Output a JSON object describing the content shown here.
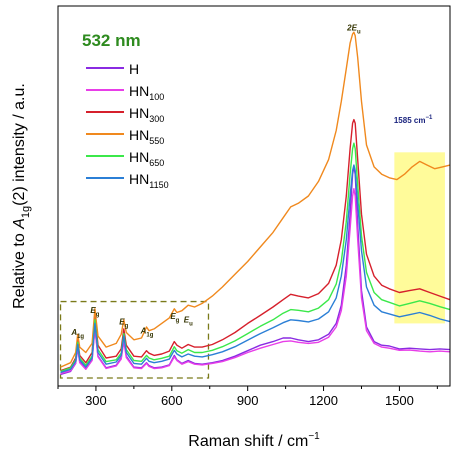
{
  "chart_data": {
    "type": "line",
    "xlabel": {
      "main": "Raman shift / cm",
      "sup": "−1"
    },
    "ylabel": {
      "pre": "Relative to ",
      "var": "A",
      "sub": "1g",
      "post": "(2) intensity / a.u."
    },
    "xlim": [
      150,
      1700
    ],
    "xticks": [
      300,
      600,
      900,
      1200,
      1500
    ],
    "ylim": [
      0,
      1
    ],
    "grid": false,
    "laser": {
      "text": "532 nm",
      "color": "#2e8b1f"
    },
    "legend_position": "top-left",
    "highlight": {
      "x0": 1480,
      "x1": 1680,
      "label": "1585 cm",
      "label_sup": "−1",
      "color": "#fffb9a",
      "label_color": "#1a237e"
    },
    "zoom_box": {
      "x0": 160,
      "x1": 745,
      "y0": 0.0,
      "y1": 0.21,
      "color": "#7a7a1a"
    },
    "peak_labels": [
      {
        "sym": "2E",
        "sub": "u",
        "x": 1320,
        "y": 0.955
      },
      {
        "sym": "A",
        "sub": "1g",
        "x": 228,
        "y": 0.118
      },
      {
        "sym": "E",
        "sub": "g",
        "x": 296,
        "y": 0.178
      },
      {
        "sym": "E",
        "sub": "g",
        "x": 410,
        "y": 0.147
      },
      {
        "sym": "A",
        "sub": "1g",
        "x": 502,
        "y": 0.122
      },
      {
        "sym": "E",
        "sub": "g",
        "x": 612,
        "y": 0.162
      },
      {
        "sym": "E",
        "sub": "u",
        "x": 665,
        "y": 0.152
      }
    ],
    "series": [
      {
        "name": "H",
        "sub": "",
        "color": "#8a2be2",
        "x": [
          160,
          200,
          220,
          228,
          236,
          260,
          285,
          296,
          308,
          340,
          380,
          400,
          410,
          420,
          450,
          480,
          500,
          510,
          530,
          560,
          590,
          610,
          620,
          640,
          665,
          690,
          720,
          760,
          800,
          850,
          900,
          950,
          1000,
          1040,
          1070,
          1100,
          1140,
          1180,
          1220,
          1250,
          1270,
          1290,
          1305,
          1315,
          1320,
          1325,
          1335,
          1350,
          1370,
          1400,
          1430,
          1460,
          1500,
          1540,
          1580,
          1620,
          1660,
          1700
        ],
        "y": [
          0.01,
          0.018,
          0.04,
          0.09,
          0.045,
          0.025,
          0.05,
          0.14,
          0.06,
          0.028,
          0.035,
          0.055,
          0.108,
          0.06,
          0.03,
          0.028,
          0.042,
          0.034,
          0.028,
          0.03,
          0.036,
          0.062,
          0.05,
          0.04,
          0.048,
          0.04,
          0.038,
          0.042,
          0.048,
          0.06,
          0.075,
          0.09,
          0.1,
          0.11,
          0.11,
          0.105,
          0.1,
          0.105,
          0.12,
          0.15,
          0.2,
          0.31,
          0.45,
          0.56,
          0.58,
          0.56,
          0.42,
          0.24,
          0.14,
          0.1,
          0.09,
          0.088,
          0.08,
          0.082,
          0.08,
          0.078,
          0.08,
          0.078
        ]
      },
      {
        "name": "HN",
        "sub": "100",
        "color": "#e83ee8",
        "x": [
          160,
          200,
          220,
          228,
          236,
          260,
          285,
          296,
          308,
          340,
          380,
          400,
          410,
          420,
          450,
          480,
          500,
          510,
          530,
          560,
          590,
          610,
          620,
          640,
          665,
          690,
          720,
          760,
          800,
          850,
          900,
          950,
          1000,
          1040,
          1070,
          1100,
          1140,
          1180,
          1220,
          1250,
          1270,
          1290,
          1305,
          1315,
          1320,
          1325,
          1335,
          1350,
          1370,
          1400,
          1430,
          1460,
          1500,
          1540,
          1580,
          1620,
          1660,
          1700
        ],
        "y": [
          0.012,
          0.02,
          0.042,
          0.08,
          0.042,
          0.024,
          0.048,
          0.135,
          0.058,
          0.026,
          0.033,
          0.052,
          0.1,
          0.056,
          0.028,
          0.026,
          0.04,
          0.032,
          0.026,
          0.028,
          0.034,
          0.058,
          0.048,
          0.038,
          0.045,
          0.038,
          0.036,
          0.04,
          0.045,
          0.056,
          0.07,
          0.082,
          0.092,
          0.1,
          0.102,
          0.098,
          0.095,
          0.098,
          0.112,
          0.14,
          0.185,
          0.28,
          0.41,
          0.5,
          0.52,
          0.5,
          0.38,
          0.22,
          0.13,
          0.095,
          0.085,
          0.082,
          0.076,
          0.077,
          0.074,
          0.072,
          0.074,
          0.072
        ]
      },
      {
        "name": "HN",
        "sub": "300",
        "color": "#d6202c",
        "x": [
          160,
          200,
          220,
          228,
          236,
          260,
          285,
          296,
          308,
          340,
          380,
          400,
          410,
          420,
          450,
          480,
          500,
          510,
          530,
          560,
          590,
          610,
          620,
          640,
          665,
          690,
          720,
          760,
          800,
          850,
          900,
          950,
          1000,
          1040,
          1070,
          1100,
          1140,
          1180,
          1220,
          1250,
          1270,
          1290,
          1305,
          1315,
          1320,
          1325,
          1335,
          1350,
          1370,
          1400,
          1430,
          1460,
          1500,
          1540,
          1580,
          1620,
          1660,
          1700
        ],
        "y": [
          0.02,
          0.03,
          0.055,
          0.105,
          0.062,
          0.042,
          0.07,
          0.175,
          0.09,
          0.055,
          0.06,
          0.08,
          0.135,
          0.09,
          0.06,
          0.058,
          0.075,
          0.068,
          0.062,
          0.066,
          0.074,
          0.1,
          0.09,
          0.082,
          0.092,
          0.085,
          0.085,
          0.092,
          0.105,
          0.125,
          0.15,
          0.172,
          0.195,
          0.215,
          0.23,
          0.225,
          0.22,
          0.232,
          0.26,
          0.31,
          0.38,
          0.5,
          0.63,
          0.7,
          0.71,
          0.7,
          0.6,
          0.45,
          0.34,
          0.28,
          0.255,
          0.245,
          0.235,
          0.24,
          0.245,
          0.235,
          0.225,
          0.215
        ]
      },
      {
        "name": "HN",
        "sub": "550",
        "color": "#f0891e",
        "x": [
          160,
          200,
          220,
          228,
          236,
          260,
          285,
          296,
          308,
          340,
          380,
          400,
          410,
          420,
          450,
          480,
          500,
          510,
          530,
          560,
          590,
          610,
          620,
          640,
          665,
          690,
          720,
          760,
          800,
          850,
          900,
          950,
          1000,
          1040,
          1070,
          1100,
          1140,
          1180,
          1220,
          1250,
          1270,
          1290,
          1305,
          1315,
          1320,
          1325,
          1335,
          1350,
          1370,
          1400,
          1430,
          1460,
          1490,
          1520,
          1550,
          1580,
          1610,
          1640,
          1670,
          1700
        ],
        "y": [
          0.03,
          0.042,
          0.07,
          0.12,
          0.085,
          0.07,
          0.095,
          0.19,
          0.115,
          0.085,
          0.095,
          0.12,
          0.16,
          0.125,
          0.105,
          0.11,
          0.14,
          0.13,
          0.135,
          0.15,
          0.165,
          0.19,
          0.18,
          0.185,
          0.2,
          0.195,
          0.205,
          0.225,
          0.25,
          0.285,
          0.32,
          0.36,
          0.4,
          0.44,
          0.47,
          0.48,
          0.5,
          0.54,
          0.6,
          0.68,
          0.76,
          0.85,
          0.92,
          0.945,
          0.95,
          0.94,
          0.88,
          0.76,
          0.64,
          0.58,
          0.56,
          0.55,
          0.545,
          0.56,
          0.58,
          0.595,
          0.585,
          0.575,
          0.58,
          0.585
        ]
      },
      {
        "name": "HN",
        "sub": "650",
        "color": "#3be84a",
        "x": [
          160,
          200,
          220,
          228,
          236,
          260,
          285,
          296,
          308,
          340,
          380,
          400,
          410,
          420,
          450,
          480,
          500,
          510,
          530,
          560,
          590,
          610,
          620,
          640,
          665,
          690,
          720,
          760,
          800,
          850,
          900,
          950,
          1000,
          1040,
          1070,
          1100,
          1140,
          1180,
          1220,
          1250,
          1270,
          1290,
          1305,
          1315,
          1320,
          1325,
          1335,
          1350,
          1370,
          1400,
          1430,
          1460,
          1500,
          1540,
          1580,
          1620,
          1660,
          1700
        ],
        "y": [
          0.018,
          0.028,
          0.05,
          0.098,
          0.055,
          0.035,
          0.06,
          0.16,
          0.078,
          0.045,
          0.05,
          0.068,
          0.122,
          0.078,
          0.048,
          0.046,
          0.062,
          0.055,
          0.05,
          0.054,
          0.06,
          0.086,
          0.075,
          0.068,
          0.078,
          0.07,
          0.07,
          0.076,
          0.086,
          0.102,
          0.122,
          0.142,
          0.16,
          0.178,
          0.188,
          0.186,
          0.182,
          0.192,
          0.215,
          0.258,
          0.32,
          0.43,
          0.56,
          0.63,
          0.645,
          0.63,
          0.53,
          0.39,
          0.29,
          0.235,
          0.215,
          0.208,
          0.198,
          0.205,
          0.212,
          0.205,
          0.196,
          0.188
        ]
      },
      {
        "name": "HN",
        "sub": "1150",
        "color": "#2b7fd6",
        "x": [
          160,
          200,
          220,
          228,
          236,
          260,
          285,
          296,
          308,
          340,
          380,
          400,
          410,
          420,
          450,
          480,
          500,
          510,
          530,
          560,
          590,
          610,
          620,
          640,
          665,
          690,
          720,
          760,
          800,
          850,
          900,
          950,
          1000,
          1040,
          1070,
          1100,
          1140,
          1180,
          1220,
          1250,
          1270,
          1290,
          1305,
          1315,
          1320,
          1325,
          1335,
          1350,
          1370,
          1400,
          1430,
          1460,
          1500,
          1540,
          1580,
          1620,
          1660,
          1700
        ],
        "y": [
          0.015,
          0.024,
          0.046,
          0.092,
          0.05,
          0.03,
          0.055,
          0.15,
          0.07,
          0.038,
          0.044,
          0.062,
          0.115,
          0.07,
          0.04,
          0.038,
          0.054,
          0.046,
          0.042,
          0.046,
          0.052,
          0.076,
          0.066,
          0.058,
          0.066,
          0.06,
          0.058,
          0.064,
          0.072,
          0.086,
          0.104,
          0.122,
          0.138,
          0.152,
          0.16,
          0.158,
          0.154,
          0.162,
          0.182,
          0.22,
          0.28,
          0.38,
          0.5,
          0.57,
          0.585,
          0.57,
          0.48,
          0.35,
          0.25,
          0.2,
          0.182,
          0.176,
          0.168,
          0.174,
          0.18,
          0.172,
          0.162,
          0.155
        ]
      }
    ]
  }
}
